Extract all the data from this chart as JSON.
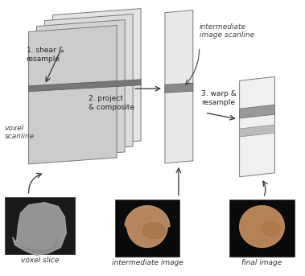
{
  "bg_color": "#ffffff",
  "labels": {
    "shear_resample": "1. shear &\nresample",
    "project_composite": "2. project\n& composite",
    "warp_resample": "3. warp &\nresample",
    "intermediate_scanline": "intermediate\nimage scanline",
    "voxel_scanline": "voxel\nscanline",
    "voxel_slice": "voxel slice",
    "intermediate_image": "intermediate image",
    "final_image": "final image"
  },
  "slice_face_color": "#e8e8e8",
  "slice_edge_color": "#666666",
  "scanline_color": "#888888",
  "arrow_color": "#333333",
  "text_color": "#222222"
}
